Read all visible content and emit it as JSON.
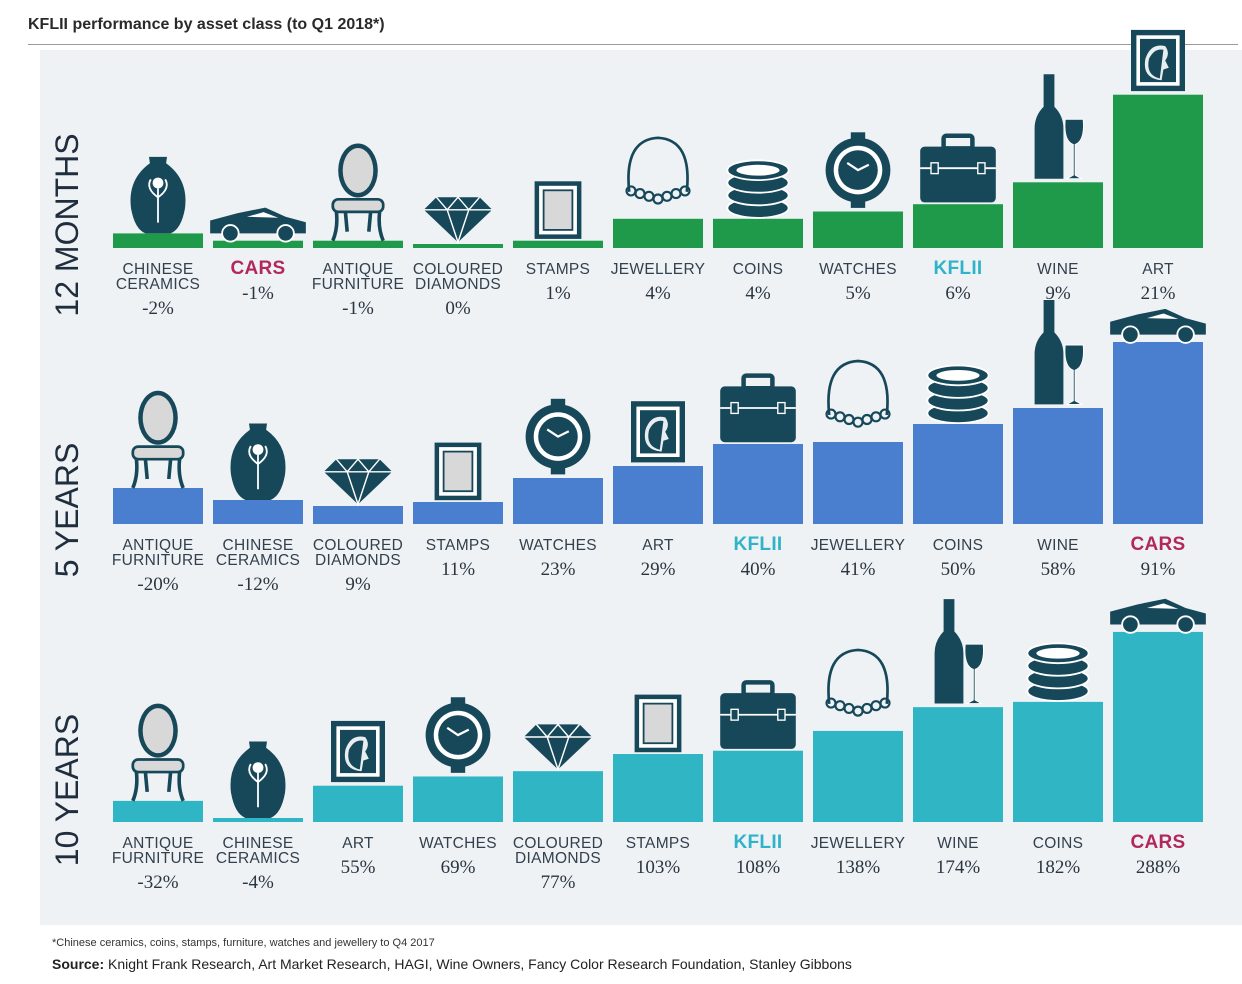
{
  "title": "KFLII performance by asset class (to Q1 2018*)",
  "footnote": "*Chinese ceramics, coins, stamps, furniture, watches and jewellery to Q4 2017",
  "source_label": "Source:",
  "source_text": "Knight Frank Research, Art Market Research, HAGI, Wine Owners, Fancy Color Research Foundation, Stanley Gibbons",
  "colors": {
    "green": "#1e9a4a",
    "blue": "#4a7fcf",
    "teal": "#2fb5c4",
    "icon": "#17485a",
    "kflii_text": "#2fb3c8",
    "cars_text": "#b3285a"
  },
  "chart_data": [
    {
      "type": "bar",
      "period": "12 MONTHS",
      "color": "green",
      "categories": [
        {
          "label": [
            "CHINESE",
            "CERAMICS"
          ],
          "value": -2,
          "display": "-2%",
          "icon": "vase-icon"
        },
        {
          "label": [
            "CARS"
          ],
          "value": -1,
          "display": "-1%",
          "icon": "car-icon",
          "highlight": "cars"
        },
        {
          "label": [
            "ANTIQUE",
            "FURNITURE"
          ],
          "value": -1,
          "display": "-1%",
          "icon": "chair-icon"
        },
        {
          "label": [
            "COLOURED",
            "DIAMONDS"
          ],
          "value": 0,
          "display": "0%",
          "icon": "diamond-icon"
        },
        {
          "label": [
            "STAMPS"
          ],
          "value": 1,
          "display": "1%",
          "icon": "stamp-icon"
        },
        {
          "label": [
            "JEWELLERY"
          ],
          "value": 4,
          "display": "4%",
          "icon": "necklace-icon"
        },
        {
          "label": [
            "COINS"
          ],
          "value": 4,
          "display": "4%",
          "icon": "coins-icon"
        },
        {
          "label": [
            "WATCHES"
          ],
          "value": 5,
          "display": "5%",
          "icon": "watch-icon"
        },
        {
          "label": [
            "KFLII"
          ],
          "value": 6,
          "display": "6%",
          "icon": "briefcase-icon",
          "highlight": "kflii"
        },
        {
          "label": [
            "WINE"
          ],
          "value": 9,
          "display": "9%",
          "icon": "wine-icon"
        },
        {
          "label": [
            "ART"
          ],
          "value": 21,
          "display": "21%",
          "icon": "portrait-icon"
        }
      ]
    },
    {
      "type": "bar",
      "period": "5 YEARS",
      "color": "blue",
      "categories": [
        {
          "label": [
            "ANTIQUE",
            "FURNITURE"
          ],
          "value": -20,
          "display": "-20%",
          "icon": "chair-icon"
        },
        {
          "label": [
            "CHINESE",
            "CERAMICS"
          ],
          "value": -12,
          "display": "-12%",
          "icon": "vase-icon"
        },
        {
          "label": [
            "COLOURED",
            "DIAMONDS"
          ],
          "value": 9,
          "display": "9%",
          "icon": "diamond-icon"
        },
        {
          "label": [
            "STAMPS"
          ],
          "value": 11,
          "display": "11%",
          "icon": "stamp-icon"
        },
        {
          "label": [
            "WATCHES"
          ],
          "value": 23,
          "display": "23%",
          "icon": "watch-icon"
        },
        {
          "label": [
            "ART"
          ],
          "value": 29,
          "display": "29%",
          "icon": "portrait-icon"
        },
        {
          "label": [
            "KFLII"
          ],
          "value": 40,
          "display": "40%",
          "icon": "briefcase-icon",
          "highlight": "kflii"
        },
        {
          "label": [
            "JEWELLERY"
          ],
          "value": 41,
          "display": "41%",
          "icon": "necklace-icon"
        },
        {
          "label": [
            "COINS"
          ],
          "value": 50,
          "display": "50%",
          "icon": "coins-icon"
        },
        {
          "label": [
            "WINE"
          ],
          "value": 58,
          "display": "58%",
          "icon": "wine-icon"
        },
        {
          "label": [
            "CARS"
          ],
          "value": 91,
          "display": "91%",
          "icon": "car-icon",
          "highlight": "cars"
        }
      ]
    },
    {
      "type": "bar",
      "period": "10 YEARS",
      "color": "teal",
      "categories": [
        {
          "label": [
            "ANTIQUE",
            "FURNITURE"
          ],
          "value": -32,
          "display": "-32%",
          "icon": "chair-icon"
        },
        {
          "label": [
            "CHINESE",
            "CERAMICS"
          ],
          "value": -4,
          "display": "-4%",
          "icon": "vase-icon"
        },
        {
          "label": [
            "ART"
          ],
          "value": 55,
          "display": "55%",
          "icon": "portrait-icon"
        },
        {
          "label": [
            "WATCHES"
          ],
          "value": 69,
          "display": "69%",
          "icon": "watch-icon"
        },
        {
          "label": [
            "COLOURED",
            "DIAMONDS"
          ],
          "value": 77,
          "display": "77%",
          "icon": "diamond-icon"
        },
        {
          "label": [
            "STAMPS"
          ],
          "value": 103,
          "display": "103%",
          "icon": "stamp-icon"
        },
        {
          "label": [
            "KFLII"
          ],
          "value": 108,
          "display": "108%",
          "icon": "briefcase-icon",
          "highlight": "kflii"
        },
        {
          "label": [
            "JEWELLERY"
          ],
          "value": 138,
          "display": "138%",
          "icon": "necklace-icon"
        },
        {
          "label": [
            "WINE"
          ],
          "value": 174,
          "display": "174%",
          "icon": "wine-icon"
        },
        {
          "label": [
            "COINS"
          ],
          "value": 182,
          "display": "182%",
          "icon": "coins-icon"
        },
        {
          "label": [
            "CARS"
          ],
          "value": 288,
          "display": "288%",
          "icon": "car-icon",
          "highlight": "cars"
        }
      ]
    }
  ]
}
